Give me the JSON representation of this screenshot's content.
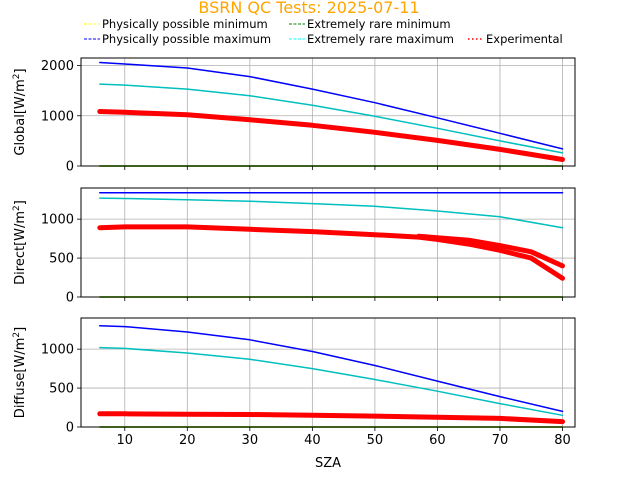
{
  "chart_data": {
    "type": "line",
    "title": "BSRN QC Tests: 2025-07-11",
    "title_color": "#ffa500",
    "xlabel": "SZA",
    "xlim": [
      3,
      82
    ],
    "xticks": [
      10,
      20,
      30,
      40,
      50,
      60,
      70,
      80
    ],
    "grid": true,
    "legend": {
      "placement": "top",
      "entries": [
        {
          "label": "Physically possible minimum",
          "color": "#ffff00",
          "style": "dashed"
        },
        {
          "label": "Extremely rare minimum",
          "color": "#008000",
          "style": "dashed"
        },
        {
          "label": "Physically possible maximum",
          "color": "#0000ff",
          "style": "dashed"
        },
        {
          "label": "Extremely rare maximum",
          "color": "#00ffff",
          "style": "dashed"
        },
        {
          "label": "Experimental",
          "color": "#ff0000",
          "style": "dotted"
        }
      ]
    },
    "panels": [
      {
        "ylabel": "Global[W/m",
        "ylabel_sup": "2",
        "ylabel_end": "]",
        "ylim": [
          0,
          2150
        ],
        "yticks": [
          0,
          1000,
          2000
        ],
        "series": [
          {
            "name": "Physically possible minimum",
            "color": "#ffff00",
            "x": [
              6,
              80
            ],
            "y": [
              0,
              0
            ]
          },
          {
            "name": "Extremely rare minimum",
            "color": "#008000",
            "x": [
              6,
              80
            ],
            "y": [
              0,
              0
            ]
          },
          {
            "name": "Physically possible maximum",
            "color": "#0000ff",
            "x": [
              6,
              10,
              20,
              30,
              40,
              50,
              60,
              70,
              80
            ],
            "y": [
              2060,
              2030,
              1950,
              1780,
              1530,
              1260,
              960,
              650,
              340
            ]
          },
          {
            "name": "Extremely rare maximum",
            "color": "#00bfbf",
            "x": [
              6,
              10,
              20,
              30,
              40,
              50,
              60,
              70,
              80
            ],
            "y": [
              1630,
              1610,
              1530,
              1400,
              1210,
              990,
              750,
              500,
              260
            ]
          },
          {
            "name": "Experimental",
            "color": "#ff0000",
            "x": [
              6,
              10,
              20,
              30,
              40,
              50,
              60,
              70,
              80
            ],
            "y": [
              1085,
              1070,
              1020,
              920,
              810,
              670,
              510,
              330,
              130
            ]
          }
        ]
      },
      {
        "ylabel": "Direct[W/m",
        "ylabel_sup": "2",
        "ylabel_end": "]",
        "ylim": [
          0,
          1400
        ],
        "yticks": [
          0,
          500,
          1000
        ],
        "series": [
          {
            "name": "Physically possible minimum",
            "color": "#ffff00",
            "x": [
              6,
              80
            ],
            "y": [
              0,
              0
            ]
          },
          {
            "name": "Extremely rare minimum",
            "color": "#008000",
            "x": [
              6,
              80
            ],
            "y": [
              0,
              0
            ]
          },
          {
            "name": "Physically possible maximum",
            "color": "#0000ff",
            "x": [
              6,
              80
            ],
            "y": [
              1340,
              1340
            ]
          },
          {
            "name": "Extremely rare maximum",
            "color": "#00bfbf",
            "x": [
              6,
              10,
              20,
              30,
              40,
              50,
              60,
              70,
              80
            ],
            "y": [
              1270,
              1265,
              1250,
              1230,
              1200,
              1165,
              1105,
              1030,
              890
            ]
          },
          {
            "name": "Experimental",
            "color": "#ff0000",
            "x": [
              6,
              10,
              20,
              30,
              40,
              50,
              57,
              60,
              65,
              70,
              75,
              80
            ],
            "y": [
              890,
              900,
              900,
              870,
              840,
              800,
              770,
              740,
              680,
              600,
              500,
              240
            ]
          },
          {
            "name": "Experimental",
            "color": "#ff0000",
            "x": [
              57,
              60,
              65,
              70,
              75,
              80
            ],
            "y": [
              780,
              760,
              730,
              660,
              580,
              400
            ]
          }
        ]
      },
      {
        "ylabel": "Diffuse[W/m",
        "ylabel_sup": "2",
        "ylabel_end": "]",
        "ylim": [
          0,
          1400
        ],
        "yticks": [
          0,
          500,
          1000
        ],
        "series": [
          {
            "name": "Physically possible minimum",
            "color": "#ffff00",
            "x": [
              6,
              80
            ],
            "y": [
              0,
              0
            ]
          },
          {
            "name": "Extremely rare minimum",
            "color": "#008000",
            "x": [
              6,
              80
            ],
            "y": [
              0,
              0
            ]
          },
          {
            "name": "Physically possible maximum",
            "color": "#0000ff",
            "x": [
              6,
              10,
              20,
              30,
              40,
              50,
              60,
              70,
              80
            ],
            "y": [
              1300,
              1290,
              1220,
              1120,
              970,
              790,
              590,
              390,
              200
            ]
          },
          {
            "name": "Extremely rare maximum",
            "color": "#00bfbf",
            "x": [
              6,
              10,
              20,
              30,
              40,
              50,
              60,
              70,
              80
            ],
            "y": [
              1020,
              1010,
              950,
              870,
              750,
              610,
              460,
              300,
              150
            ]
          },
          {
            "name": "Experimental",
            "color": "#ff0000",
            "x": [
              6,
              10,
              20,
              30,
              40,
              50,
              60,
              70,
              80
            ],
            "y": [
              170,
              170,
              165,
              160,
              150,
              140,
              125,
              110,
              70
            ]
          }
        ]
      }
    ]
  }
}
